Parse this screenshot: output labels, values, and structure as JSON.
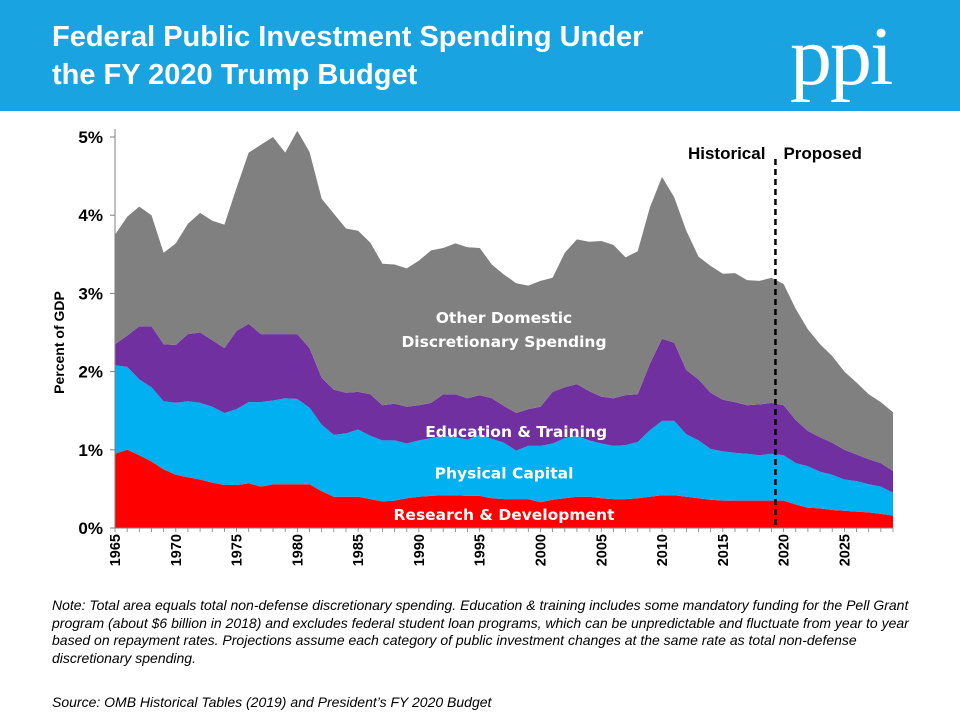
{
  "header": {
    "title_line1": "Federal Public Investment Spending Under",
    "title_line2": "the FY 2020 Trump Budget",
    "logo": "ppi",
    "background_color": "#1aa3e1"
  },
  "chart_data": {
    "type": "area",
    "stacked": true,
    "ylabel": "Percent of GDP",
    "ylim": [
      0,
      5
    ],
    "yticks": [
      "0%",
      "1%",
      "2%",
      "3%",
      "4%",
      "5%"
    ],
    "xlim": [
      1965,
      2029
    ],
    "xticks": [
      "1965",
      "1970",
      "1975",
      "1980",
      "1985",
      "1990",
      "1995",
      "2000",
      "2005",
      "2010",
      "2015",
      "2020",
      "2025"
    ],
    "grid": false,
    "x": [
      1965,
      1966,
      1967,
      1968,
      1969,
      1970,
      1971,
      1972,
      1973,
      1974,
      1975,
      1976,
      1977,
      1978,
      1979,
      1980,
      1981,
      1982,
      1983,
      1984,
      1985,
      1986,
      1987,
      1988,
      1989,
      1990,
      1991,
      1992,
      1993,
      1994,
      1995,
      1996,
      1997,
      1998,
      1999,
      2000,
      2001,
      2002,
      2003,
      2004,
      2005,
      2006,
      2007,
      2008,
      2009,
      2010,
      2011,
      2012,
      2013,
      2014,
      2015,
      2016,
      2017,
      2018,
      2019,
      2020,
      2021,
      2022,
      2023,
      2024,
      2025,
      2026,
      2027,
      2028,
      2029
    ],
    "series": [
      {
        "name": "Research & Development",
        "color": "#ff0000",
        "values": [
          0.95,
          1.0,
          0.93,
          0.85,
          0.75,
          0.68,
          0.65,
          0.62,
          0.58,
          0.55,
          0.55,
          0.57,
          0.53,
          0.56,
          0.56,
          0.56,
          0.56,
          0.47,
          0.4,
          0.4,
          0.4,
          0.37,
          0.34,
          0.35,
          0.38,
          0.4,
          0.41,
          0.42,
          0.42,
          0.41,
          0.41,
          0.38,
          0.37,
          0.37,
          0.37,
          0.33,
          0.36,
          0.38,
          0.4,
          0.4,
          0.38,
          0.37,
          0.37,
          0.38,
          0.4,
          0.42,
          0.42,
          0.4,
          0.38,
          0.36,
          0.35,
          0.35,
          0.35,
          0.35,
          0.35,
          0.35,
          0.3,
          0.26,
          0.25,
          0.23,
          0.22,
          0.21,
          0.2,
          0.18,
          0.16
        ]
      },
      {
        "name": "Physical Capital",
        "color": "#00b0f0",
        "values": [
          1.13,
          1.06,
          0.97,
          0.95,
          0.87,
          0.92,
          0.97,
          0.98,
          0.97,
          0.92,
          0.97,
          1.04,
          1.08,
          1.07,
          1.1,
          1.09,
          0.98,
          0.85,
          0.79,
          0.81,
          0.86,
          0.81,
          0.78,
          0.77,
          0.7,
          0.72,
          0.74,
          0.76,
          0.74,
          0.72,
          0.78,
          0.76,
          0.72,
          0.62,
          0.68,
          0.72,
          0.72,
          0.77,
          0.78,
          0.72,
          0.7,
          0.68,
          0.69,
          0.72,
          0.85,
          0.95,
          0.95,
          0.8,
          0.74,
          0.65,
          0.63,
          0.61,
          0.6,
          0.58,
          0.6,
          0.58,
          0.53,
          0.53,
          0.47,
          0.45,
          0.4,
          0.39,
          0.36,
          0.35,
          0.29
        ]
      },
      {
        "name": "Education & Training",
        "color": "#7030a0",
        "values": [
          0.27,
          0.4,
          0.68,
          0.78,
          0.73,
          0.74,
          0.86,
          0.9,
          0.85,
          0.83,
          1.0,
          1.0,
          0.87,
          0.85,
          0.82,
          0.83,
          0.76,
          0.6,
          0.58,
          0.52,
          0.48,
          0.53,
          0.45,
          0.47,
          0.47,
          0.45,
          0.45,
          0.53,
          0.55,
          0.53,
          0.51,
          0.52,
          0.47,
          0.48,
          0.47,
          0.5,
          0.66,
          0.65,
          0.66,
          0.63,
          0.6,
          0.61,
          0.64,
          0.61,
          0.85,
          1.05,
          1.0,
          0.82,
          0.78,
          0.72,
          0.66,
          0.65,
          0.62,
          0.65,
          0.65,
          0.64,
          0.55,
          0.45,
          0.44,
          0.41,
          0.38,
          0.34,
          0.32,
          0.3,
          0.28
        ]
      },
      {
        "name": "Other Domestic Discretionary Spending",
        "color": "#808080",
        "values": [
          1.4,
          1.52,
          1.53,
          1.42,
          1.17,
          1.3,
          1.41,
          1.53,
          1.53,
          1.58,
          1.83,
          2.19,
          2.42,
          2.52,
          2.32,
          2.6,
          2.51,
          2.29,
          2.25,
          2.1,
          2.06,
          1.94,
          1.81,
          1.78,
          1.77,
          1.85,
          1.95,
          1.87,
          1.93,
          1.93,
          1.88,
          1.71,
          1.68,
          1.66,
          1.58,
          1.61,
          1.46,
          1.72,
          1.85,
          1.91,
          1.99,
          1.96,
          1.76,
          1.83,
          2.0,
          2.07,
          1.86,
          1.78,
          1.57,
          1.62,
          1.61,
          1.65,
          1.6,
          1.58,
          1.6,
          1.55,
          1.42,
          1.3,
          1.19,
          1.11,
          1.0,
          0.92,
          0.83,
          0.78,
          0.75
        ]
      }
    ],
    "area_labels": [
      {
        "text": "Other Domestic",
        "series": "Other Domestic Discretionary Spending"
      },
      {
        "text": "Discretionary Spending",
        "series": "Other Domestic Discretionary Spending"
      },
      {
        "text": "Education & Training",
        "series": "Education & Training"
      },
      {
        "text": "Physical Capital",
        "series": "Physical Capital"
      },
      {
        "text": "Research & Development",
        "series": "Research & Development"
      }
    ],
    "divider": {
      "x": 2019,
      "style": "dashed",
      "left_label": "Historical",
      "right_label": "Proposed"
    }
  },
  "note": "Note: Total area equals total non-defense discretionary spending. Education & training includes some mandatory funding for the Pell Grant program (about $6 billion in 2018) and excludes federal student loan programs, which can be unpredictable and fluctuate from year to year based on repayment rates. Projections assume each category of public investment changes at the same rate as total non-defense discretionary spending.",
  "source": "Source: OMB Historical Tables (2019) and President’s FY 2020 Budget"
}
